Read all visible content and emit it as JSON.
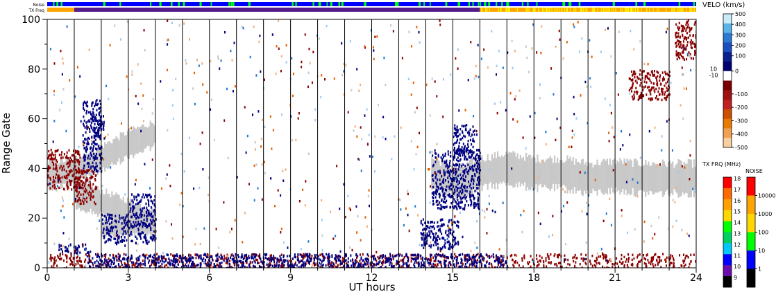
{
  "chart_data": {
    "type": "heatmap",
    "main": {
      "xlabel": "UT hours",
      "ylabel": "Range Gate",
      "xlim": [
        0,
        24
      ],
      "ylim": [
        0,
        100
      ],
      "xticks": [
        0,
        3,
        6,
        9,
        12,
        15,
        18,
        21,
        24
      ],
      "yticks": [
        0,
        20,
        40,
        60,
        80,
        100
      ],
      "hour_lines": [
        1,
        2,
        3,
        4,
        5,
        6,
        7,
        8,
        9,
        10,
        11,
        12,
        13,
        14,
        15,
        16,
        17,
        18,
        19,
        20,
        21,
        22,
        23
      ],
      "ground_scatter_color": "#c8c8c8",
      "ground_scatter_bands": [
        {
          "name": "",
          "points": [
            [
              0,
              37
            ],
            [
              1,
              39
            ],
            [
              2,
              44
            ],
            [
              3,
              50
            ],
            [
              4,
              54
            ]
          ],
          "half_width": 5
        },
        {
          "name": "",
          "points": [
            [
              1,
              30
            ],
            [
              2,
              26
            ],
            [
              3,
              22
            ],
            [
              4,
              18
            ]
          ],
          "half_width": 5
        },
        {
          "name": "",
          "points": [
            [
              2,
              16
            ],
            [
              3,
              16
            ],
            [
              4,
              17
            ]
          ],
          "half_width": 3
        },
        {
          "name": "",
          "points": [
            [
              14.2,
              38
            ],
            [
              15.2,
              34
            ],
            [
              16,
              38
            ],
            [
              17,
              40
            ],
            [
              18,
              38
            ],
            [
              19,
              38
            ],
            [
              20,
              36
            ],
            [
              21,
              37
            ],
            [
              22,
              36
            ],
            [
              23,
              36
            ],
            [
              24,
              36
            ]
          ],
          "half_width": 6
        }
      ],
      "velocity_patches": [
        {
          "x": [
            1.3,
            2.0
          ],
          "y": [
            38,
            68
          ],
          "color": "#000080"
        },
        {
          "x": [
            1.7,
            2.1
          ],
          "y": [
            52,
            62
          ],
          "color": "#000080"
        },
        {
          "x": [
            2.0,
            4.0
          ],
          "y": [
            10,
            22
          ],
          "color": "#000080"
        },
        {
          "x": [
            3.0,
            4.0
          ],
          "y": [
            22,
            30
          ],
          "color": "#000080"
        },
        {
          "x": [
            0.4,
            1.6
          ],
          "y": [
            6,
            10
          ],
          "color": "#000080"
        },
        {
          "x": [
            13.8,
            15.2
          ],
          "y": [
            8,
            20
          ],
          "color": "#000080"
        },
        {
          "x": [
            14.2,
            16.0
          ],
          "y": [
            24,
            48
          ],
          "color": "#000080"
        },
        {
          "x": [
            15.0,
            15.8
          ],
          "y": [
            46,
            58
          ],
          "color": "#000080"
        },
        {
          "x": [
            21.5,
            23.0
          ],
          "y": [
            68,
            80
          ],
          "color": "#8b0000"
        },
        {
          "x": [
            23.2,
            24.0
          ],
          "y": [
            84,
            100
          ],
          "color": "#8b0000"
        },
        {
          "x": [
            0.0,
            1.2
          ],
          "y": [
            32,
            48
          ],
          "color": "#8b0000"
        },
        {
          "x": [
            1.0,
            1.8
          ],
          "y": [
            26,
            40
          ],
          "color": "#8b0000"
        },
        {
          "x": [
            0.0,
            24.0
          ],
          "y": [
            0,
            6
          ],
          "color": "#8b0000"
        },
        {
          "x": [
            1.5,
            17.0
          ],
          "y": [
            0,
            6
          ],
          "color": "#000080"
        }
      ]
    },
    "top_bars": {
      "noise_label": "Noise",
      "freq_label": "TX Freq",
      "noise_base_color": "#0000ff",
      "noise_tick_color": "#00ff00",
      "freq_segments": [
        {
          "x": [
            0,
            1
          ],
          "color": "#ffa500"
        },
        {
          "x": [
            1,
            16
          ],
          "color": "#551a8b"
        },
        {
          "x": [
            16,
            24
          ],
          "color": "#ffa500"
        }
      ]
    },
    "velo_scale": {
      "title": "VELO (km/s)",
      "ticks": [
        500,
        400,
        300,
        200,
        100,
        0,
        -100,
        -200,
        -300,
        -400,
        -500
      ],
      "small_ticks": [
        10,
        -10
      ],
      "colors": [
        "#c8ecf8",
        "#5ab4e8",
        "#2a7ad2",
        "#1a4fc0",
        "#08208e",
        "#00006e",
        "#ffffff",
        "#7a0000",
        "#a01010",
        "#c02020",
        "#cc5000",
        "#e87a00",
        "#f0a050",
        "#f8d0a0"
      ]
    },
    "freq_scale": {
      "title": "TX FRQ (MHz)",
      "ticks": [
        18,
        17,
        16,
        15,
        14,
        13,
        12,
        11,
        10,
        9
      ],
      "colors": [
        "#ff0000",
        "#ff6a00",
        "#ff9f00",
        "#ffd700",
        "#00ff00",
        "#00d060",
        "#00c8ff",
        "#0000ff",
        "#6a0dad",
        "#000000"
      ]
    },
    "noise_scale": {
      "title": "NOISE",
      "ticks": [
        10000,
        1000,
        100,
        10,
        1
      ],
      "colors": [
        "#ff0000",
        "#ffa500",
        "#ffd700",
        "#00ff00",
        "#0000ff",
        "#000000"
      ]
    }
  }
}
